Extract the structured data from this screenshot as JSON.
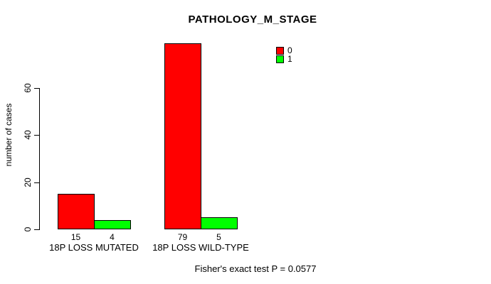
{
  "chart_data": {
    "type": "bar",
    "title": "PATHOLOGY_M_STAGE",
    "ylabel": "number of cases",
    "xlabel": "",
    "categories": [
      "18P LOSS MUTATED",
      "18P LOSS WILD-TYPE"
    ],
    "series": [
      {
        "name": "0",
        "color": "#FF0000",
        "values": [
          15,
          79
        ]
      },
      {
        "name": "1",
        "color": "#00FF00",
        "values": [
          4,
          5
        ]
      }
    ],
    "yticks": [
      0,
      20,
      40,
      60
    ],
    "ylim": [
      0,
      60
    ],
    "grid": false,
    "legend": {
      "position": "top-right",
      "entries": [
        {
          "label": "0",
          "color": "#FF0000"
        },
        {
          "label": "1",
          "color": "#00FF00"
        }
      ]
    },
    "annotation": "Fisher's exact test P = 0.0577"
  },
  "colors": {
    "bar_red": "#FF0000",
    "bar_green": "#00FF00",
    "axis": "#000000",
    "background": "#FFFFFF"
  }
}
